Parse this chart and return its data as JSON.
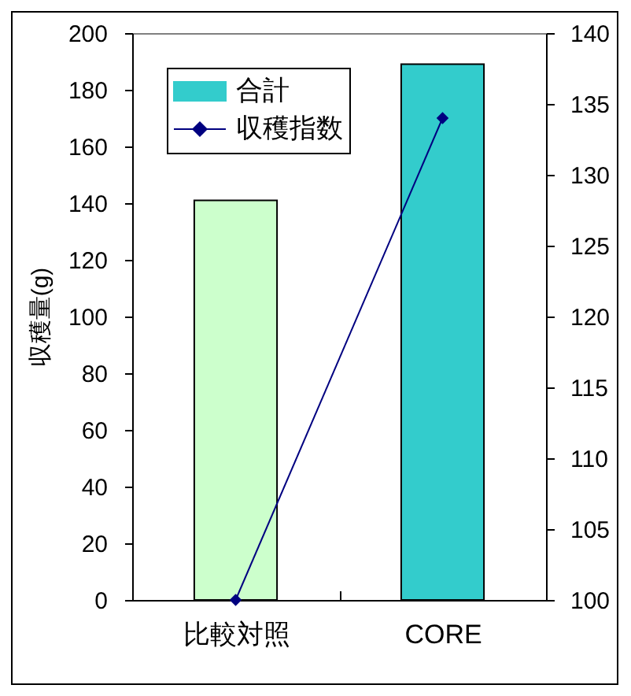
{
  "chart_data": {
    "type": "bar",
    "categories": [
      "比較対照",
      "CORE"
    ],
    "ylabel": "収穫量(g)",
    "ylim": [
      0,
      200
    ],
    "yticks": [
      0,
      20,
      40,
      60,
      80,
      100,
      120,
      140,
      160,
      180,
      200
    ],
    "y2lim": [
      100,
      140
    ],
    "y2ticks": [
      100,
      105,
      110,
      115,
      120,
      125,
      130,
      135,
      140
    ],
    "series": [
      {
        "name": "合計",
        "color": "#33cccc",
        "colors": [
          "#ccffcc",
          "#33cccc"
        ],
        "values": [
          141,
          189
        ]
      },
      {
        "name": "収穫指数",
        "type": "line",
        "axis": "y2",
        "color": "#000080",
        "values": [
          100,
          134
        ]
      }
    ],
    "marker": "diamond",
    "line_style": "solid",
    "legend": "top left",
    "grid": false
  }
}
